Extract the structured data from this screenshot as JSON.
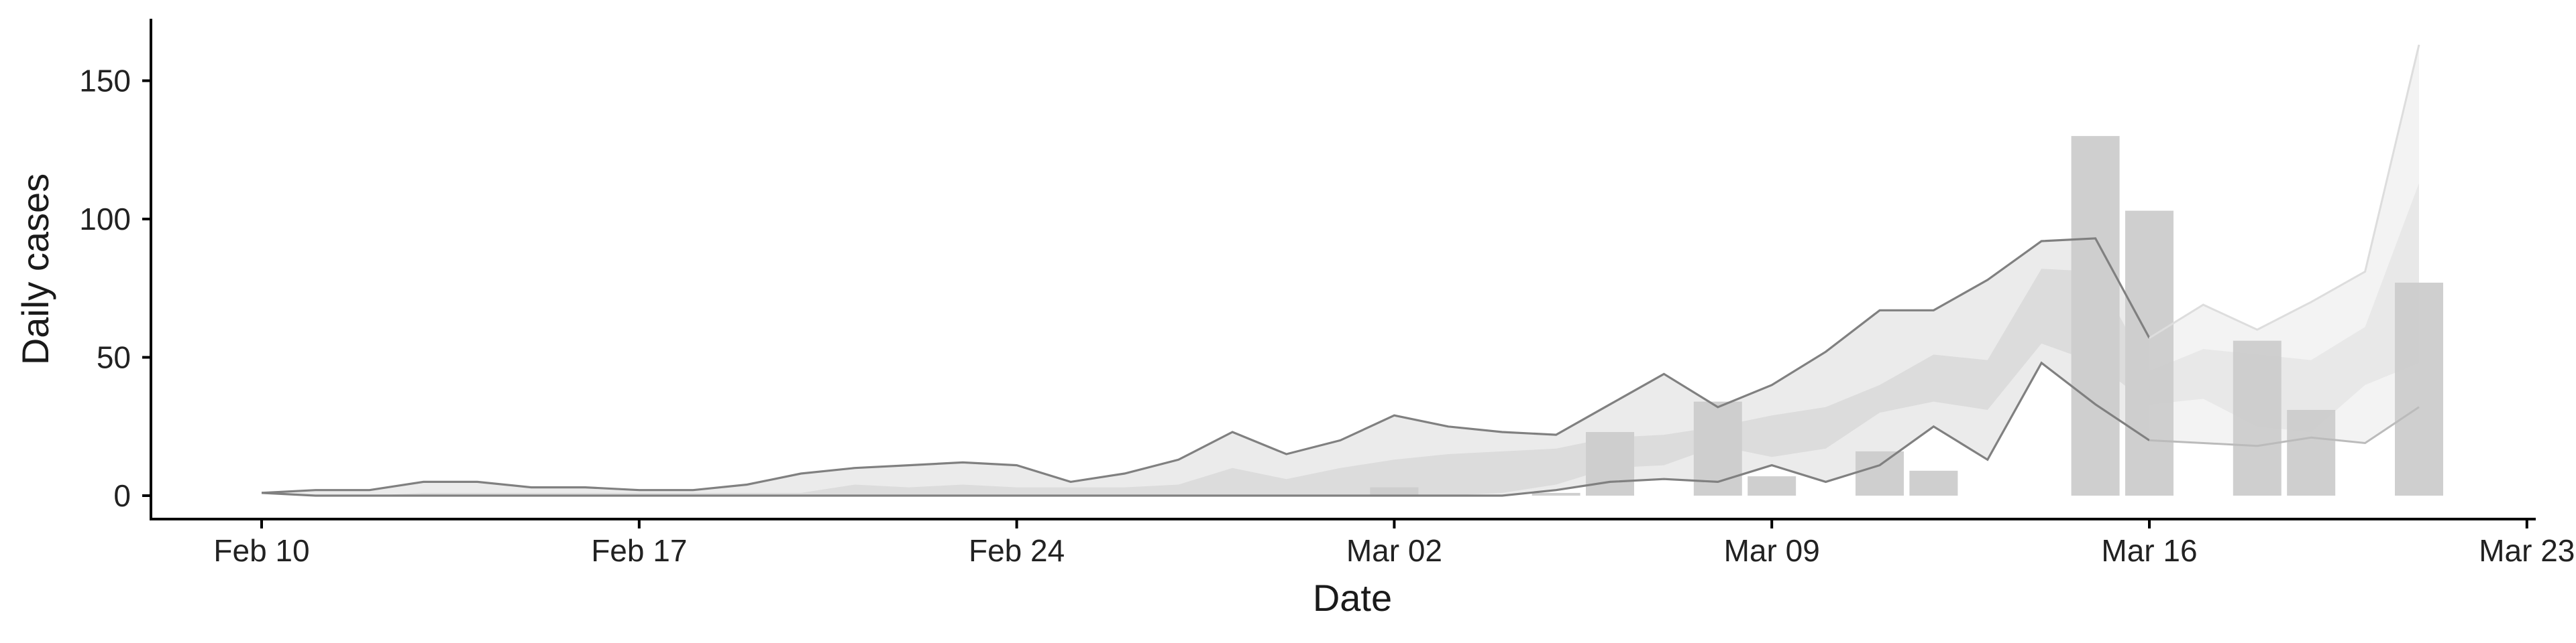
{
  "chart_data": {
    "type": "bar",
    "title": "",
    "xlabel": "Date",
    "ylabel": "Daily cases",
    "x_start": "2020-02-10",
    "x_ticks": [
      "Feb 10",
      "Feb 17",
      "Feb 24",
      "Mar 02",
      "Mar 09",
      "Mar 16",
      "Mar 23"
    ],
    "y_ticks": [
      0,
      50,
      100,
      150
    ],
    "xlim": [
      "Feb 10",
      "Mar 23"
    ],
    "ylim": [
      -8,
      172
    ],
    "grid": false,
    "colors": {
      "bars": "#cccccc",
      "outer_band": "#ebebeb",
      "inner_band": "#dcdcdc",
      "bound_lines": "#808080",
      "axis": "#000000"
    },
    "observed_bars": {
      "name": "Daily cases",
      "dates": [
        "Mar 02",
        "Mar 05",
        "Mar 06",
        "Mar 08",
        "Mar 09",
        "Mar 11",
        "Mar 12",
        "Mar 15",
        "Mar 16",
        "Mar 18",
        "Mar 19",
        "Mar 21"
      ],
      "values": [
        3,
        1,
        23,
        34,
        7,
        16,
        9,
        130,
        103,
        56,
        31,
        77
      ]
    },
    "fit_dates": [
      "Feb 10",
      "Feb 11",
      "Feb 12",
      "Feb 13",
      "Feb 14",
      "Feb 15",
      "Feb 16",
      "Feb 17",
      "Feb 18",
      "Feb 19",
      "Feb 20",
      "Feb 21",
      "Feb 22",
      "Feb 23",
      "Feb 24",
      "Feb 25",
      "Feb 26",
      "Feb 27",
      "Feb 28",
      "Feb 29",
      "Mar 01",
      "Mar 02",
      "Mar 03",
      "Mar 04",
      "Mar 05",
      "Mar 06",
      "Mar 07",
      "Mar 08",
      "Mar 09",
      "Mar 10",
      "Mar 11",
      "Mar 12",
      "Mar 13",
      "Mar 14",
      "Mar 15",
      "Mar 16"
    ],
    "outer_upper": [
      1,
      2,
      2,
      5,
      5,
      3,
      3,
      2,
      2,
      4,
      8,
      10,
      11,
      12,
      11,
      5,
      8,
      13,
      23,
      15,
      20,
      29,
      25,
      23,
      22,
      33,
      44,
      32,
      40,
      52,
      67,
      67,
      78,
      92,
      93,
      57
    ],
    "outer_lower": [
      1,
      0,
      0,
      0,
      0,
      0,
      0,
      0,
      0,
      0,
      0,
      0,
      0,
      0,
      0,
      0,
      0,
      0,
      0,
      0,
      0,
      0,
      0,
      0,
      2,
      5,
      6,
      5,
      11,
      5,
      11,
      25,
      13,
      48,
      33,
      20
    ],
    "inner_upper": [
      1,
      0,
      0,
      1,
      1,
      1,
      1,
      1,
      1,
      1,
      1,
      4,
      3,
      4,
      3,
      3,
      3,
      4,
      10,
      6,
      10,
      13,
      15,
      16,
      17,
      21,
      22,
      25,
      29,
      32,
      40,
      51,
      49,
      82,
      81,
      45
    ],
    "inner_lower": [
      1,
      0,
      0,
      0,
      0,
      0,
      0,
      0,
      0,
      0,
      0,
      0,
      0,
      0,
      0,
      0,
      0,
      0,
      0,
      0,
      0,
      0,
      0,
      1,
      4,
      10,
      11,
      18,
      14,
      17,
      30,
      34,
      31,
      55,
      48,
      33
    ],
    "projection_dates": [
      "Mar 16",
      "Mar 17",
      "Mar 18",
      "Mar 19",
      "Mar 20",
      "Mar 21"
    ],
    "projection_upper": [
      57,
      69,
      60,
      70,
      81,
      163
    ],
    "projection_inner_upper": [
      45,
      53,
      51,
      49,
      61,
      113
    ],
    "projection_inner_lower": [
      33,
      35,
      25,
      23,
      40,
      48
    ],
    "projection_lower": [
      20,
      19,
      18,
      21,
      19,
      32
    ]
  }
}
